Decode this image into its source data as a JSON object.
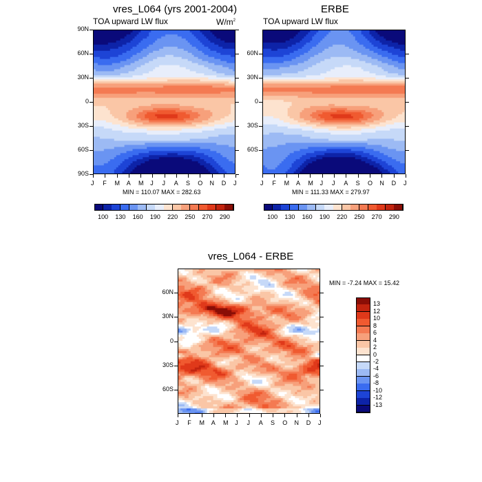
{
  "chart_data": [
    {
      "type": "heatmap",
      "id": "model",
      "title": "vres_L064 (yrs 2001-2004)",
      "left_subtitle": "TOA upward LW flux",
      "units": "W/m",
      "units_sup": "2",
      "x_tick_labels": [
        "J",
        "F",
        "M",
        "A",
        "M",
        "J",
        "J",
        "A",
        "S",
        "O",
        "N",
        "D",
        "J"
      ],
      "y_tick_labels": [
        "90N",
        "60N",
        "30N",
        "0",
        "30S",
        "60S",
        "90S"
      ],
      "y_range": [
        -90,
        90
      ],
      "x_range_months": [
        0,
        12
      ],
      "stats": "MIN = 110.07 MAX = 282.63",
      "min": 110.07,
      "max": 282.63,
      "colorbar_labels": [
        "100",
        "130",
        "160",
        "190",
        "220",
        "250",
        "270",
        "290"
      ]
    },
    {
      "type": "heatmap",
      "id": "obs",
      "title": "ERBE",
      "left_subtitle": "TOA upward LW flux",
      "x_tick_labels": [
        "J",
        "F",
        "M",
        "A",
        "M",
        "J",
        "J",
        "A",
        "S",
        "O",
        "N",
        "D",
        "J"
      ],
      "y_tick_labels": [
        "60N",
        "30N",
        "0",
        "30S",
        "60S"
      ],
      "y_range": [
        -90,
        90
      ],
      "x_range_months": [
        0,
        12
      ],
      "stats": "MIN = 111.33 MAX = 279.97",
      "min": 111.33,
      "max": 279.97,
      "colorbar_labels": [
        "100",
        "130",
        "160",
        "190",
        "220",
        "250",
        "270",
        "290"
      ]
    },
    {
      "type": "heatmap",
      "id": "diff",
      "title": "vres_L064 - ERBE",
      "x_tick_labels": [
        "J",
        "F",
        "M",
        "A",
        "M",
        "J",
        "J",
        "A",
        "S",
        "O",
        "N",
        "D",
        "J"
      ],
      "y_tick_labels": [
        "60N",
        "30N",
        "0",
        "30S",
        "60S"
      ],
      "y_range": [
        -90,
        90
      ],
      "x_range_months": [
        0,
        12
      ],
      "stats": "MIN =  -7.24 MAX =  15.42",
      "min": -7.24,
      "max": 15.42,
      "colorbar_labels": [
        "13",
        "12",
        "10",
        "8",
        "6",
        "4",
        "2",
        "0",
        "-2",
        "-4",
        "-6",
        "-8",
        "-10",
        "-12",
        "-13"
      ]
    }
  ],
  "colors": {
    "abs_levels": [
      "#0a0a7a",
      "#0d23a8",
      "#1d44d6",
      "#3a6cf0",
      "#6a94f2",
      "#9cbaf4",
      "#c6d9f8",
      "#e8eefb",
      "#fde3cf",
      "#fac6a6",
      "#f7a07b",
      "#f47a52",
      "#f05a30",
      "#e0391a",
      "#c2240f",
      "#8a0e06"
    ],
    "diff_levels": [
      "#0a0a7a",
      "#0d23a8",
      "#1d44d6",
      "#3a6cf0",
      "#6a94f2",
      "#9cbaf4",
      "#c6d9f8",
      "#ffffff",
      "#fde3cf",
      "#fac6a6",
      "#f7a07b",
      "#f47a52",
      "#f05a30",
      "#e0391a",
      "#c2240f",
      "#8a0e06"
    ]
  }
}
